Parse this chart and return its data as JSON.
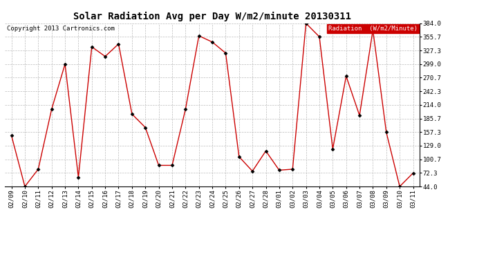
{
  "title": "Solar Radiation Avg per Day W/m2/minute 20130311",
  "copyright": "Copyright 2013 Cartronics.com",
  "legend_label": "Radiation  (W/m2/Minute)",
  "dates": [
    "02/09",
    "02/10",
    "02/11",
    "02/12",
    "02/13",
    "02/14",
    "02/15",
    "02/16",
    "02/17",
    "02/18",
    "02/19",
    "02/20",
    "02/21",
    "02/22",
    "02/23",
    "02/24",
    "02/25",
    "02/26",
    "02/27",
    "02/28",
    "03/01",
    "03/02",
    "03/03",
    "03/04",
    "03/05",
    "03/06",
    "03/07",
    "03/08",
    "03/09",
    "03/10",
    "03/11"
  ],
  "values": [
    150,
    44,
    80,
    205,
    299,
    63,
    335,
    315,
    341,
    195,
    167,
    88,
    88,
    205,
    358,
    345,
    322,
    106,
    76,
    118,
    78,
    80,
    384,
    356,
    122,
    274,
    192,
    370,
    157,
    44,
    72
  ],
  "line_color": "#cc0000",
  "marker_color": "#000000",
  "bg_color": "#ffffff",
  "plot_bg_color": "#ffffff",
  "grid_color": "#bbbbbb",
  "yticks": [
    44.0,
    72.3,
    100.7,
    129.0,
    157.3,
    185.7,
    214.0,
    242.3,
    270.7,
    299.0,
    327.3,
    355.7,
    384.0
  ],
  "ylim": [
    44.0,
    384.0
  ],
  "title_fontsize": 10,
  "axis_fontsize": 6.5,
  "copyright_fontsize": 6.5,
  "legend_fontsize": 6.5,
  "legend_bg": "#cc0000",
  "legend_text_color": "#ffffff"
}
